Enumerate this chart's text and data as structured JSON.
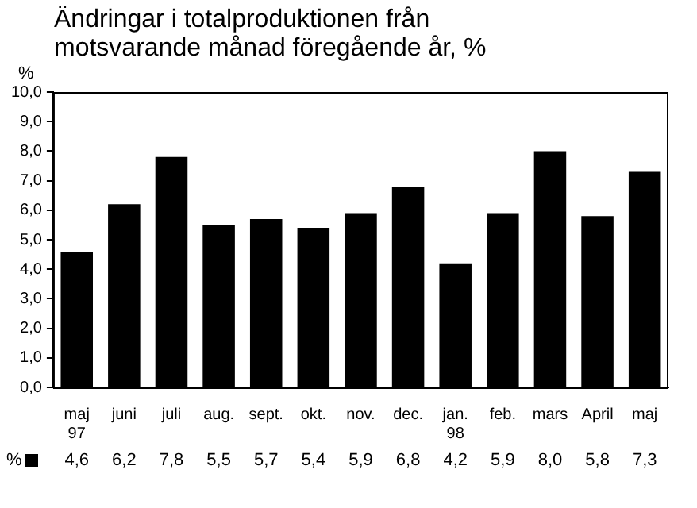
{
  "chart_data": {
    "type": "bar",
    "title": "Ändringar i totalproduktionen från motsvarande månad föregående år, %",
    "ylabel": "%",
    "categories": [
      "maj 97",
      "juni",
      "juli",
      "aug.",
      "sept.",
      "okt.",
      "nov.",
      "dec.",
      "jan. 98",
      "feb.",
      "mars",
      "April",
      "maj"
    ],
    "series": [
      {
        "name": "%",
        "color": "#000000",
        "values": [
          4.6,
          6.2,
          7.8,
          5.5,
          5.7,
          5.4,
          5.9,
          6.8,
          4.2,
          5.9,
          8.0,
          5.8,
          7.3
        ],
        "value_labels": [
          "4,6",
          "6,2",
          "7,8",
          "5,5",
          "5,7",
          "5,4",
          "5,9",
          "6,8",
          "4,2",
          "5,9",
          "8,0",
          "5,8",
          "7,3"
        ]
      }
    ],
    "ylim": [
      0,
      10
    ],
    "yticks": [
      {
        "value": 0,
        "label": "0,0"
      },
      {
        "value": 1,
        "label": "1,0"
      },
      {
        "value": 2,
        "label": "2,0"
      },
      {
        "value": 3,
        "label": "3,0"
      },
      {
        "value": 4,
        "label": "4,0"
      },
      {
        "value": 5,
        "label": "5,0"
      },
      {
        "value": 6,
        "label": "6,0"
      },
      {
        "value": 7,
        "label": "7,0"
      },
      {
        "value": 8,
        "label": "8,0"
      },
      {
        "value": 9,
        "label": "9,0"
      },
      {
        "value": 10,
        "label": "10,0"
      }
    ],
    "grid": false,
    "legend": "bottom left"
  }
}
